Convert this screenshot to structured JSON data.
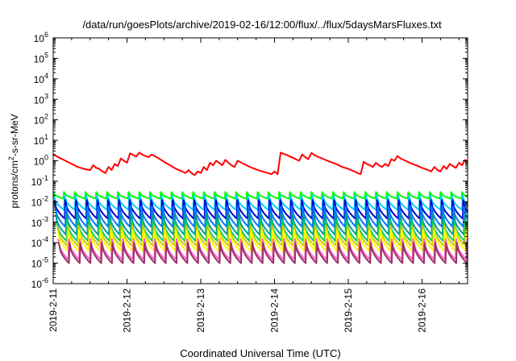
{
  "chart_data": {
    "type": "line",
    "title": "/data/run/goesPlots/archive/2019-02-16/12:00/flux/../flux/5daysMarsFluxes.txt",
    "xlabel": "Coordinated Universal Time (UTC)",
    "ylabel": {
      "base": "protons/cm",
      "sup": "2",
      "rest": "-s-sr-MeV"
    },
    "x_axis": {
      "type": "time",
      "min": "2019-02-11",
      "max": "2019-02-16T13:00",
      "ticks": [
        "2019-2-11",
        "2019-2-12",
        "2019-2-13",
        "2019-2-14",
        "2019-2-15",
        "2019-2-16"
      ]
    },
    "y_axis": {
      "scale": "log",
      "min_exp": -6,
      "max_exp": 6,
      "tick_exponents": [
        -6,
        -5,
        -4,
        -3,
        -2,
        -1,
        0,
        1,
        2,
        3,
        4,
        5,
        6
      ]
    },
    "grid": false,
    "legend": "none",
    "series_note": "curves are estimated from the plot; time in hours since 2019-2-11 00:00, flux in protons/cm2-s-sr-MeV",
    "series": [
      {
        "color": "#ff0000",
        "points": [
          [
            0,
            2.0
          ],
          [
            2,
            1.4
          ],
          [
            4,
            1.0
          ],
          [
            6,
            0.7
          ],
          [
            8,
            0.5
          ],
          [
            10,
            0.4
          ],
          [
            12,
            0.35
          ],
          [
            13,
            0.6
          ],
          [
            14,
            0.45
          ],
          [
            15,
            0.4
          ],
          [
            16,
            0.3
          ],
          [
            17,
            0.25
          ],
          [
            18,
            0.5
          ],
          [
            19,
            0.35
          ],
          [
            20,
            0.7
          ],
          [
            21,
            0.55
          ],
          [
            22,
            1.3
          ],
          [
            23,
            1.0
          ],
          [
            24,
            0.8
          ],
          [
            25,
            2.3
          ],
          [
            26,
            1.9
          ],
          [
            27,
            1.6
          ],
          [
            28,
            2.5
          ],
          [
            29,
            2.0
          ],
          [
            30,
            1.7
          ],
          [
            31,
            1.5
          ],
          [
            32,
            2.0
          ],
          [
            34,
            1.4
          ],
          [
            36,
            0.9
          ],
          [
            38,
            0.6
          ],
          [
            40,
            0.4
          ],
          [
            42,
            0.3
          ],
          [
            43,
            0.25
          ],
          [
            44,
            0.35
          ],
          [
            45,
            0.25
          ],
          [
            46,
            0.2
          ],
          [
            47,
            0.3
          ],
          [
            48,
            0.25
          ],
          [
            49,
            0.5
          ],
          [
            50,
            0.35
          ],
          [
            51,
            0.8
          ],
          [
            52,
            0.6
          ],
          [
            53,
            1.0
          ],
          [
            54,
            0.8
          ],
          [
            55,
            0.6
          ],
          [
            56,
            1.1
          ],
          [
            57,
            0.8
          ],
          [
            58,
            0.6
          ],
          [
            59,
            0.5
          ],
          [
            60,
            1.0
          ],
          [
            62,
            0.7
          ],
          [
            64,
            0.5
          ],
          [
            66,
            0.38
          ],
          [
            68,
            0.3
          ],
          [
            70,
            0.25
          ],
          [
            71,
            0.22
          ],
          [
            72,
            0.3
          ],
          [
            73,
            0.22
          ],
          [
            74,
            2.5
          ],
          [
            76,
            1.9
          ],
          [
            78,
            1.4
          ],
          [
            80,
            1.0
          ],
          [
            81,
            2.0
          ],
          [
            82,
            1.5
          ],
          [
            83,
            1.2
          ],
          [
            84,
            2.4
          ],
          [
            85,
            1.9
          ],
          [
            86,
            1.6
          ],
          [
            88,
            1.2
          ],
          [
            90,
            0.9
          ],
          [
            92,
            0.7
          ],
          [
            94,
            0.5
          ],
          [
            96,
            0.4
          ],
          [
            98,
            0.3
          ],
          [
            99,
            0.25
          ],
          [
            100,
            0.22
          ],
          [
            101,
            0.9
          ],
          [
            102,
            0.7
          ],
          [
            103,
            0.6
          ],
          [
            104,
            0.5
          ],
          [
            105,
            0.8
          ],
          [
            106,
            0.6
          ],
          [
            107,
            0.5
          ],
          [
            108,
            0.7
          ],
          [
            109,
            0.55
          ],
          [
            110,
            1.2
          ],
          [
            111,
            1.0
          ],
          [
            112,
            1.7
          ],
          [
            113,
            1.3
          ],
          [
            114,
            1.1
          ],
          [
            116,
            0.8
          ],
          [
            118,
            0.6
          ],
          [
            120,
            0.45
          ],
          [
            122,
            0.35
          ],
          [
            123,
            0.3
          ],
          [
            124,
            0.5
          ],
          [
            125,
            0.35
          ],
          [
            126,
            0.3
          ],
          [
            127,
            0.55
          ],
          [
            128,
            0.4
          ],
          [
            129,
            0.7
          ],
          [
            130,
            0.55
          ],
          [
            131,
            0.45
          ],
          [
            132,
            0.8
          ],
          [
            133,
            0.6
          ],
          [
            134,
            1.1
          ],
          [
            135,
            0.85
          ],
          [
            136,
            0.7
          ],
          [
            137,
            1.0
          ],
          [
            138,
            0.8
          ],
          [
            139,
            0.65
          ],
          [
            140,
            1.0
          ],
          [
            141,
            0.8
          ],
          [
            142,
            0.7
          ],
          [
            143,
            0.55
          ],
          [
            144,
            0.7
          ],
          [
            145,
            0.55
          ],
          [
            146,
            0.45
          ],
          [
            147,
            0.6
          ],
          [
            148,
            0.45
          ],
          [
            149,
            0.4
          ],
          [
            150,
            0.5
          ],
          [
            151,
            0.4
          ],
          [
            152,
            0.35
          ],
          [
            153,
            0.4
          ],
          [
            154,
            0.35
          ]
        ]
      },
      {
        "color": "#00ff00",
        "sawtooth": {
          "period_hours": 3.5,
          "start_hour": 0,
          "end_hour": 154,
          "peak": 0.03,
          "trough": 0.014
        }
      },
      {
        "color": "#00ccff",
        "sawtooth": {
          "period_hours": 3.5,
          "start_hour": 0.2,
          "end_hour": 154,
          "peak": 0.02,
          "trough": 0.004
        }
      },
      {
        "color": "#0000cc",
        "sawtooth": {
          "period_hours": 3.5,
          "start_hour": 0.4,
          "end_hour": 154,
          "peak": 0.012,
          "trough": 0.0015
        }
      },
      {
        "color": "#0077ff",
        "sawtooth": {
          "period_hours": 3.5,
          "start_hour": 0.6,
          "end_hour": 154,
          "peak": 0.006,
          "trough": 0.0006
        }
      },
      {
        "color": "#009999",
        "sawtooth": {
          "period_hours": 3.5,
          "start_hour": 0.8,
          "end_hour": 154,
          "peak": 0.0025,
          "trough": 0.00025
        }
      },
      {
        "color": "#00cc66",
        "sawtooth": {
          "period_hours": 3.5,
          "start_hour": 1.0,
          "end_hour": 154,
          "peak": 0.0012,
          "trough": 0.00012
        }
      },
      {
        "color": "#cccc00",
        "sawtooth": {
          "period_hours": 3.5,
          "start_hour": 1.2,
          "end_hour": 154,
          "peak": 0.0007,
          "trough": 7e-05
        }
      },
      {
        "color": "#ffff00",
        "sawtooth": {
          "period_hours": 3.5,
          "start_hour": 1.4,
          "end_hour": 154,
          "peak": 0.0004,
          "trough": 4e-05
        }
      },
      {
        "color": "#ff66cc",
        "sawtooth": {
          "period_hours": 3.5,
          "start_hour": 1.6,
          "end_hour": 154,
          "peak": 0.00015,
          "trough": 1.5e-05
        }
      },
      {
        "color": "#993366",
        "sawtooth": {
          "period_hours": 3.5,
          "start_hour": 1.8,
          "end_hour": 154,
          "peak": 0.0001,
          "trough": 1e-05
        }
      }
    ]
  }
}
